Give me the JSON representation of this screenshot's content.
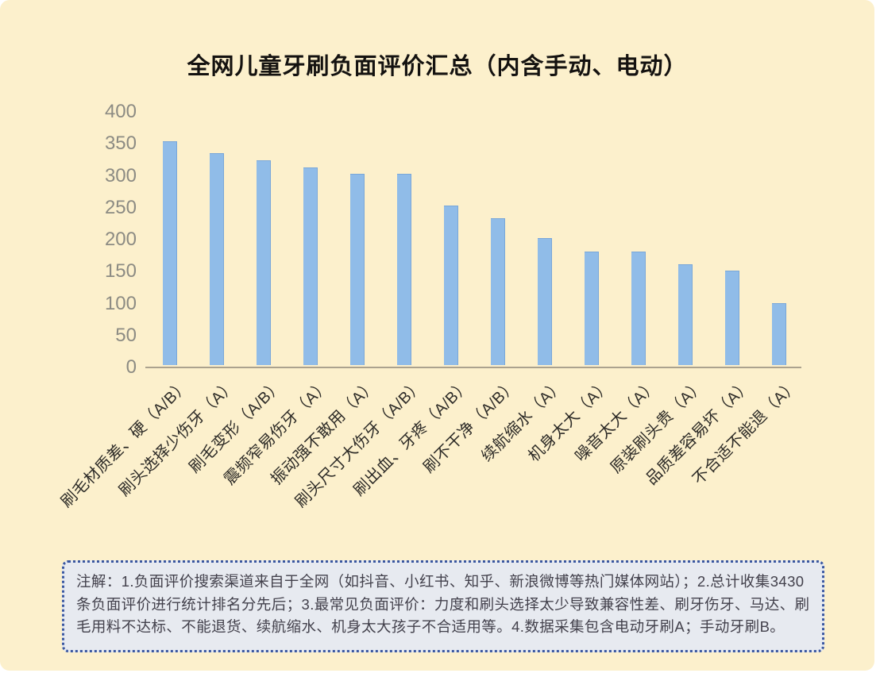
{
  "title": "全网儿童牙刷负面评价汇总（内含手动、电动）",
  "colors": {
    "card_bg": "#FCF0CC",
    "bar": "#90BCE8",
    "bar_edge": "#79A7D9",
    "axis_line": "#ABA28E",
    "ytick_text": "#8C8B83",
    "xtick_text": "#2E2C28",
    "title_text": "#141210",
    "note_bg": "#E7EAF0",
    "note_border": "#3A57A0",
    "note_text": "#43414C"
  },
  "chart_data": {
    "type": "bar",
    "title": "全网儿童牙刷负面评价汇总（内含手动、电动）",
    "categories": [
      "刷毛材质差、硬（A/B）",
      "刷头选择少伤牙（A）",
      "刷毛变形（A/B）",
      "震频窄易伤牙（A）",
      "振动强不敢用（A）",
      "刷头尺寸大伤牙（A/B）",
      "刷出血、牙疼（A/B）",
      "刷不干净（A/B）",
      "续航缩水（A）",
      "机身太大（A）",
      "噪音太大（A）",
      "原装刷头贵（A）",
      "品质差容易坏（A）",
      "不合适不能退（A）"
    ],
    "values": [
      349,
      330,
      319,
      308,
      298,
      298,
      248,
      228,
      197,
      177,
      177,
      157,
      146,
      96
    ],
    "yticks": [
      400,
      350,
      300,
      250,
      200,
      150,
      100,
      50,
      0
    ],
    "ylim": [
      0,
      400
    ],
    "xlabel": "",
    "ylabel": "",
    "grid": false,
    "legend": false,
    "bar_color": "#90BCE8",
    "xtick_rotation_deg": 45
  },
  "note": {
    "text": "注解：1.负面评价搜索渠道来自于全网（如抖音、小红书、知乎、新浪微博等热门媒体网站）；2.总计收集3430条负面评价进行统计排名分先后；3.最常见负面评价：力度和刷头选择太少导致兼容性差、刷牙伤牙、马达、刷毛用料不达标、不能退货、续航缩水、机身太大孩子不合适用等。4.数据采集包含电动牙刷A；手动牙刷B。"
  }
}
